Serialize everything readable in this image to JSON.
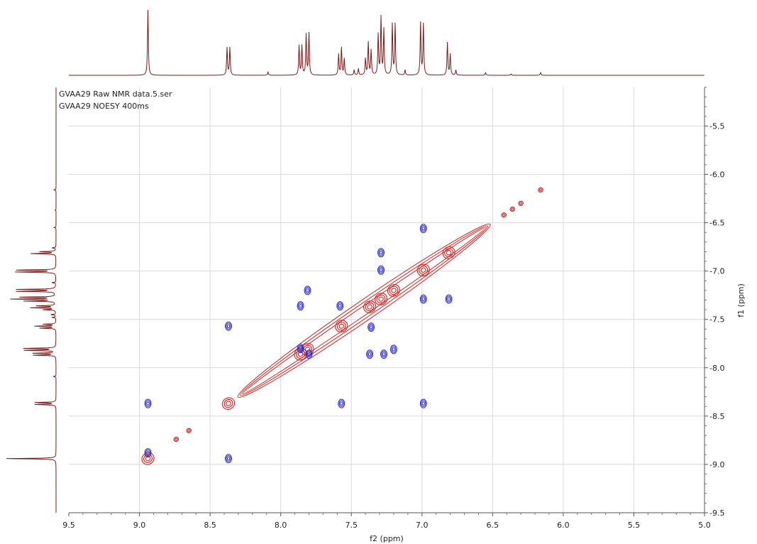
{
  "chart_data": {
    "type": "contour",
    "info_lines": [
      "GVAA29 Raw NMR data.5.ser",
      "GVAA29 NOESY 400ms"
    ],
    "xlabel": "f2 (ppm)",
    "ylabel": "f1 (ppm)",
    "xlim": [
      9.5,
      5.0
    ],
    "ylim": [
      5.1,
      9.5
    ],
    "x_ticks": [
      "9.5",
      "9.0",
      "8.5",
      "8.0",
      "7.5",
      "7.0",
      "6.5",
      "6.0",
      "5.5",
      "5.0"
    ],
    "y_ticks": [
      "5.5",
      "6.0",
      "6.5",
      "7.0",
      "7.5",
      "8.0",
      "8.5",
      "9.0",
      "9.5"
    ],
    "grid": true,
    "colors": {
      "diagonal": "#d42020",
      "cross": "#2323c8",
      "projection": "#7a1a1a",
      "grid": "#d9d9d9"
    },
    "diagonal_ridge": {
      "from": [
        8.27,
        8.27
      ],
      "to": [
        6.55,
        6.55
      ]
    },
    "diagonal_peaks": [
      {
        "x": 8.94,
        "y": 8.94
      },
      {
        "x": 8.37,
        "y": 8.37
      },
      {
        "x": 7.86,
        "y": 7.86
      },
      {
        "x": 7.81,
        "y": 7.81
      },
      {
        "x": 7.57,
        "y": 7.57
      },
      {
        "x": 7.37,
        "y": 7.37
      },
      {
        "x": 7.29,
        "y": 7.29
      },
      {
        "x": 7.2,
        "y": 7.2
      },
      {
        "x": 6.99,
        "y": 6.99
      },
      {
        "x": 6.81,
        "y": 6.81
      },
      {
        "x": 6.16,
        "y": 6.16
      },
      {
        "x": 6.42,
        "y": 6.42
      },
      {
        "x": 6.36,
        "y": 6.36
      },
      {
        "x": 6.3,
        "y": 6.3
      },
      {
        "x": 8.74,
        "y": 8.74
      },
      {
        "x": 8.65,
        "y": 8.65
      }
    ],
    "cross_peaks": [
      {
        "x": 8.94,
        "y": 8.37
      },
      {
        "x": 8.37,
        "y": 8.94
      },
      {
        "x": 8.37,
        "y": 7.57
      },
      {
        "x": 7.57,
        "y": 8.37
      },
      {
        "x": 7.86,
        "y": 7.36
      },
      {
        "x": 7.81,
        "y": 7.2
      },
      {
        "x": 7.37,
        "y": 7.86
      },
      {
        "x": 7.2,
        "y": 7.81
      },
      {
        "x": 7.29,
        "y": 6.81
      },
      {
        "x": 7.29,
        "y": 6.99
      },
      {
        "x": 6.99,
        "y": 7.29
      },
      {
        "x": 6.81,
        "y": 7.29
      },
      {
        "x": 7.58,
        "y": 7.36
      },
      {
        "x": 7.36,
        "y": 7.58
      },
      {
        "x": 7.86,
        "y": 7.8
      },
      {
        "x": 7.8,
        "y": 7.86
      },
      {
        "x": 6.99,
        "y": 8.37
      },
      {
        "x": 6.99,
        "y": 6.56
      },
      {
        "x": 8.94,
        "y": 8.88
      },
      {
        "x": 7.27,
        "y": 7.86
      }
    ],
    "spectrum_1d": [
      {
        "ppm": 8.94,
        "intensity": 1.0
      },
      {
        "ppm": 8.38,
        "intensity": 0.42
      },
      {
        "ppm": 8.36,
        "intensity": 0.42
      },
      {
        "ppm": 7.87,
        "intensity": 0.45
      },
      {
        "ppm": 7.85,
        "intensity": 0.45
      },
      {
        "ppm": 7.82,
        "intensity": 0.62
      },
      {
        "ppm": 7.8,
        "intensity": 0.64
      },
      {
        "ppm": 7.59,
        "intensity": 0.32
      },
      {
        "ppm": 7.57,
        "intensity": 0.42
      },
      {
        "ppm": 7.55,
        "intensity": 0.25
      },
      {
        "ppm": 7.4,
        "intensity": 0.25
      },
      {
        "ppm": 7.38,
        "intensity": 0.5
      },
      {
        "ppm": 7.36,
        "intensity": 0.38
      },
      {
        "ppm": 7.31,
        "intensity": 0.62
      },
      {
        "ppm": 7.29,
        "intensity": 0.88
      },
      {
        "ppm": 7.27,
        "intensity": 0.7
      },
      {
        "ppm": 7.21,
        "intensity": 0.78
      },
      {
        "ppm": 7.19,
        "intensity": 0.78
      },
      {
        "ppm": 7.01,
        "intensity": 0.8
      },
      {
        "ppm": 6.99,
        "intensity": 0.78
      },
      {
        "ppm": 6.82,
        "intensity": 0.5
      },
      {
        "ppm": 6.8,
        "intensity": 0.32
      },
      {
        "ppm": 6.76,
        "intensity": 0.08
      },
      {
        "ppm": 6.55,
        "intensity": 0.04
      },
      {
        "ppm": 8.09,
        "intensity": 0.05
      },
      {
        "ppm": 7.48,
        "intensity": 0.08
      },
      {
        "ppm": 7.45,
        "intensity": 0.1
      },
      {
        "ppm": 7.12,
        "intensity": 0.08
      },
      {
        "ppm": 6.16,
        "intensity": 0.04
      },
      {
        "ppm": 6.37,
        "intensity": 0.02
      }
    ]
  }
}
